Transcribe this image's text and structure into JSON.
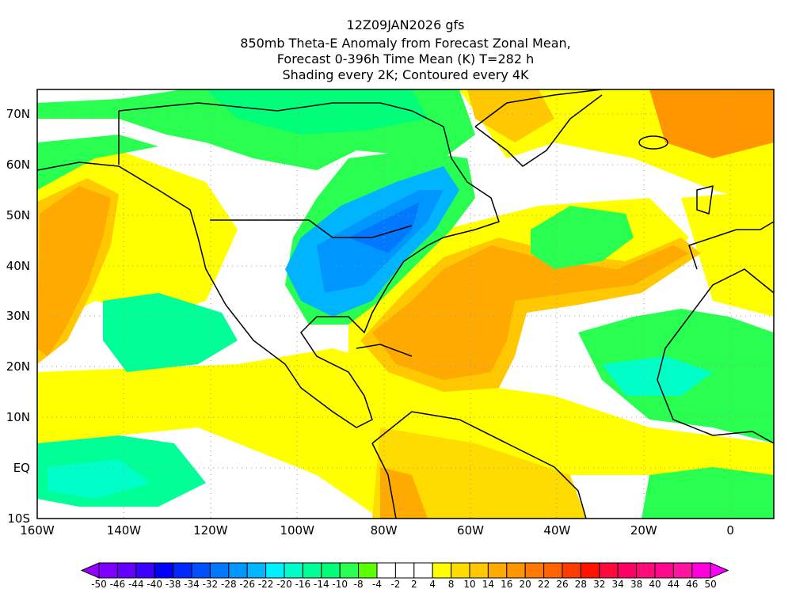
{
  "title": {
    "line1": "12Z09JAN2026 gfs",
    "line2": "850mb Theta-E Anomaly from Forecast Zonal Mean,",
    "line3": "Forecast 0-396h Time Mean (K) T=282 h",
    "line4": "Shading every 2K; Contoured every 4K"
  },
  "axes": {
    "lat_labels": [
      "70N",
      "60N",
      "50N",
      "40N",
      "30N",
      "20N",
      "10N",
      "EQ",
      "10S"
    ],
    "lat_values": [
      70,
      60,
      50,
      40,
      30,
      20,
      10,
      0,
      -10
    ],
    "lon_labels": [
      "160W",
      "140W",
      "120W",
      "100W",
      "80W",
      "60W",
      "40W",
      "20W",
      "0"
    ],
    "lon_values": [
      -160,
      -140,
      -120,
      -100,
      -80,
      -60,
      -40,
      -20,
      0
    ]
  },
  "colorbar": {
    "labels": [
      "-50",
      "-46",
      "-44",
      "-40",
      "-38",
      "-34",
      "-32",
      "-28",
      "-26",
      "-22",
      "-20",
      "-16",
      "-14",
      "-10",
      "-8",
      "-4",
      "-2",
      "2",
      "4",
      "8",
      "10",
      "14",
      "16",
      "20",
      "22",
      "26",
      "28",
      "32",
      "34",
      "38",
      "40",
      "44",
      "46",
      "50"
    ],
    "colors": [
      "#7f00ff",
      "#6400ff",
      "#3c00ff",
      "#0000ff",
      "#0028ff",
      "#0050ff",
      "#0078ff",
      "#0096ff",
      "#00b4ff",
      "#00f0ff",
      "#00ffc8",
      "#00ff96",
      "#00ff78",
      "#28ff50",
      "#5aff00",
      "#ffffff",
      "#ffffff",
      "#ffffff",
      "#ffff00",
      "#ffdc00",
      "#ffc800",
      "#ffaa00",
      "#ff9600",
      "#ff7800",
      "#ff6400",
      "#ff3c00",
      "#ff1400",
      "#ff0a3c",
      "#ff0064",
      "#ff0a78",
      "#ff0a8c",
      "#ff14a0",
      "#ff00dc"
    ],
    "low_arrow_color": "#9600ff",
    "high_arrow_color": "#ff00ff"
  }
}
